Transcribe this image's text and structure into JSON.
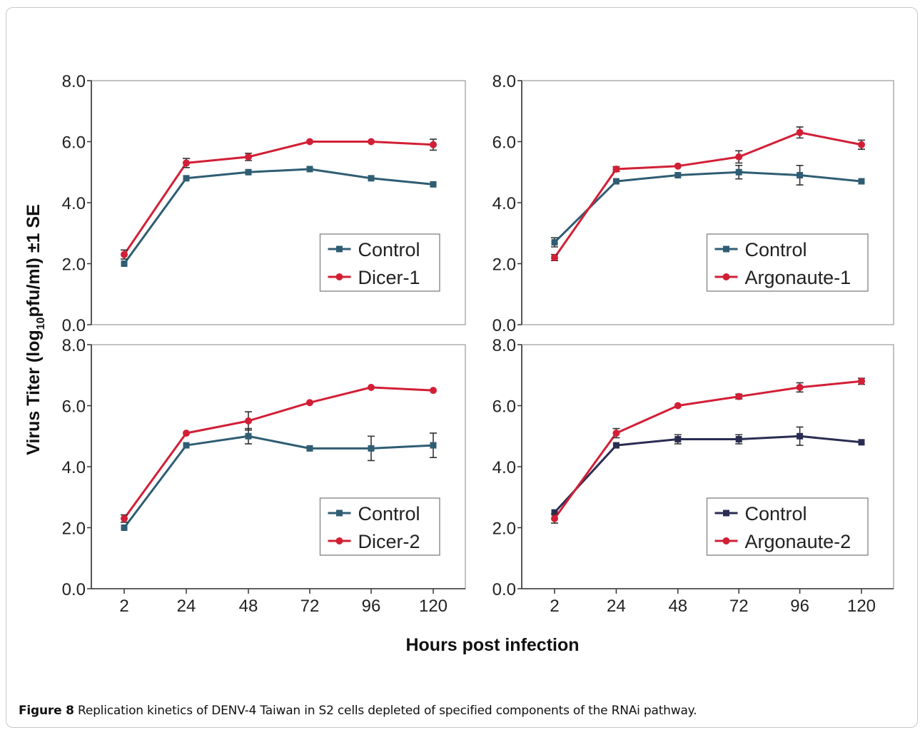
{
  "figure": {
    "ylabel": "Virus Titer (log10pfu/ml) ±1 SE",
    "ylabel_parts": {
      "pre": "Virus Titer (log",
      "sub": "10",
      "post": "pfu/ml) ±1 SE"
    },
    "xlabel": "Hours post infection"
  },
  "caption": {
    "label": "Figure 8",
    "text": " Replication kinetics of DENV-4 Taiwan in S2 cells depleted of specified components of the RNAi pathway."
  },
  "chart_data": [
    {
      "type": "line",
      "panel": "top-left",
      "categories": [
        "2",
        "24",
        "48",
        "72",
        "96",
        "120"
      ],
      "ylim": [
        0,
        8
      ],
      "yticks": [
        "0.0",
        "2.0",
        "4.0",
        "6.0",
        "8.0"
      ],
      "legend_placement": "bottom-right",
      "series": [
        {
          "name": "Control",
          "color": "#2f5d73",
          "marker": "square",
          "values": [
            2.0,
            4.8,
            5.0,
            5.1,
            4.8,
            4.6
          ],
          "errors": [
            0,
            0,
            0,
            0,
            0,
            0
          ]
        },
        {
          "name": "Dicer-1",
          "color": "#d21f36",
          "marker": "circle",
          "values": [
            2.3,
            5.3,
            5.5,
            6.0,
            6.0,
            5.9
          ],
          "errors": [
            0.15,
            0.15,
            0.12,
            0,
            0,
            0.18
          ]
        }
      ]
    },
    {
      "type": "line",
      "panel": "top-right",
      "categories": [
        "2",
        "24",
        "48",
        "72",
        "96",
        "120"
      ],
      "ylim": [
        0,
        8
      ],
      "yticks": [
        "0.0",
        "2.0",
        "4.0",
        "6.0",
        "8.0"
      ],
      "legend_placement": "bottom-right",
      "series": [
        {
          "name": "Control",
          "color": "#2f5d73",
          "marker": "square",
          "values": [
            2.7,
            4.7,
            4.9,
            5.0,
            4.9,
            4.7
          ],
          "errors": [
            0.15,
            0,
            0,
            0.22,
            0.32,
            0
          ]
        },
        {
          "name": "Argonaute-1",
          "color": "#d21f36",
          "marker": "circle",
          "values": [
            2.2,
            5.1,
            5.2,
            5.5,
            6.3,
            5.9
          ],
          "errors": [
            0.1,
            0.08,
            0,
            0.2,
            0.18,
            0.15
          ]
        }
      ]
    },
    {
      "type": "line",
      "panel": "bottom-left",
      "categories": [
        "2",
        "24",
        "48",
        "72",
        "96",
        "120"
      ],
      "ylim": [
        0,
        8
      ],
      "yticks": [
        "0.0",
        "2.0",
        "4.0",
        "6.0",
        "8.0"
      ],
      "legend_placement": "bottom-right",
      "series": [
        {
          "name": "Control",
          "color": "#2f5d73",
          "marker": "square",
          "values": [
            2.0,
            4.7,
            5.0,
            4.6,
            4.6,
            4.7
          ],
          "errors": [
            0,
            0,
            0.25,
            0,
            0.4,
            0.4
          ]
        },
        {
          "name": "Dicer-2",
          "color": "#d21f36",
          "marker": "circle",
          "values": [
            2.3,
            5.1,
            5.5,
            6.1,
            6.6,
            6.5
          ],
          "errors": [
            0.12,
            0,
            0.3,
            0,
            0,
            0
          ]
        }
      ]
    },
    {
      "type": "line",
      "panel": "bottom-right",
      "categories": [
        "2",
        "24",
        "48",
        "72",
        "96",
        "120"
      ],
      "ylim": [
        0,
        8
      ],
      "yticks": [
        "0.0",
        "2.0",
        "4.0",
        "6.0",
        "8.0"
      ],
      "legend_placement": "bottom-right",
      "series": [
        {
          "name": "Control",
          "color": "#2a2d52",
          "marker": "square",
          "values": [
            2.5,
            4.7,
            4.9,
            4.9,
            5.0,
            4.8
          ],
          "errors": [
            0,
            0,
            0.15,
            0.15,
            0.3,
            0
          ]
        },
        {
          "name": "Argonaute-2",
          "color": "#d21f36",
          "marker": "circle",
          "values": [
            2.3,
            5.1,
            6.0,
            6.3,
            6.6,
            6.8
          ],
          "errors": [
            0.15,
            0.15,
            0,
            0.08,
            0.15,
            0.1
          ]
        }
      ]
    }
  ]
}
